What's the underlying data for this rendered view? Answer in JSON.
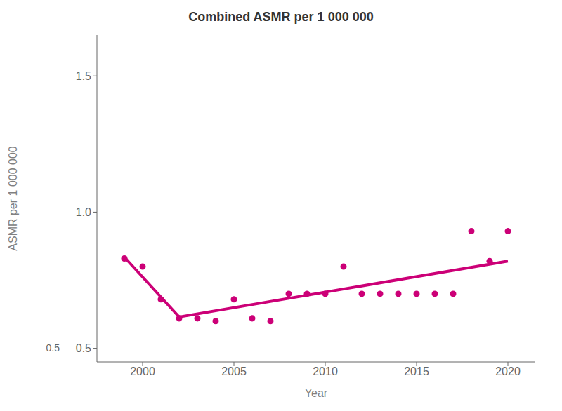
{
  "chart_data": {
    "type": "scatter",
    "title": "Combined ASMR per 1 000 000",
    "x_label": "Year",
    "y_label": "ASMR per 1 000 000",
    "series": [
      {
        "type": "line",
        "color": "#CC0077",
        "x": [
          1999,
          2002,
          2020
        ],
        "values": [
          0.835,
          0.615,
          0.82
        ]
      },
      {
        "type": "scatter",
        "color": "#CC0077",
        "marker": "circle",
        "x": [
          1999,
          2000,
          2001,
          2002,
          2003,
          2004,
          2005,
          2006,
          2007,
          2008,
          2009,
          2010,
          2011,
          2012,
          2013,
          2014,
          2015,
          2016,
          2017,
          2018,
          2019,
          2020
        ],
        "values": [
          0.83,
          0.8,
          0.68,
          0.61,
          0.61,
          0.6,
          0.68,
          0.61,
          0.6,
          0.7,
          0.7,
          0.7,
          0.8,
          0.7,
          0.7,
          0.7,
          0.7,
          0.7,
          0.7,
          0.93,
          0.82,
          0.93
        ]
      }
    ],
    "xlim": [
      1997.5,
      2021.5
    ],
    "xticks": [
      2000,
      2005,
      2010,
      2015,
      2020
    ],
    "ylim": [
      0.45,
      1.65
    ],
    "yticks": [
      0.5,
      {
        "value": 1.0,
        "label": "1.0"
      },
      1.5
    ],
    "grid": false,
    "annotations": [
      {
        "text": "0.5",
        "x": 1997,
        "y": 0.497
      }
    ]
  }
}
